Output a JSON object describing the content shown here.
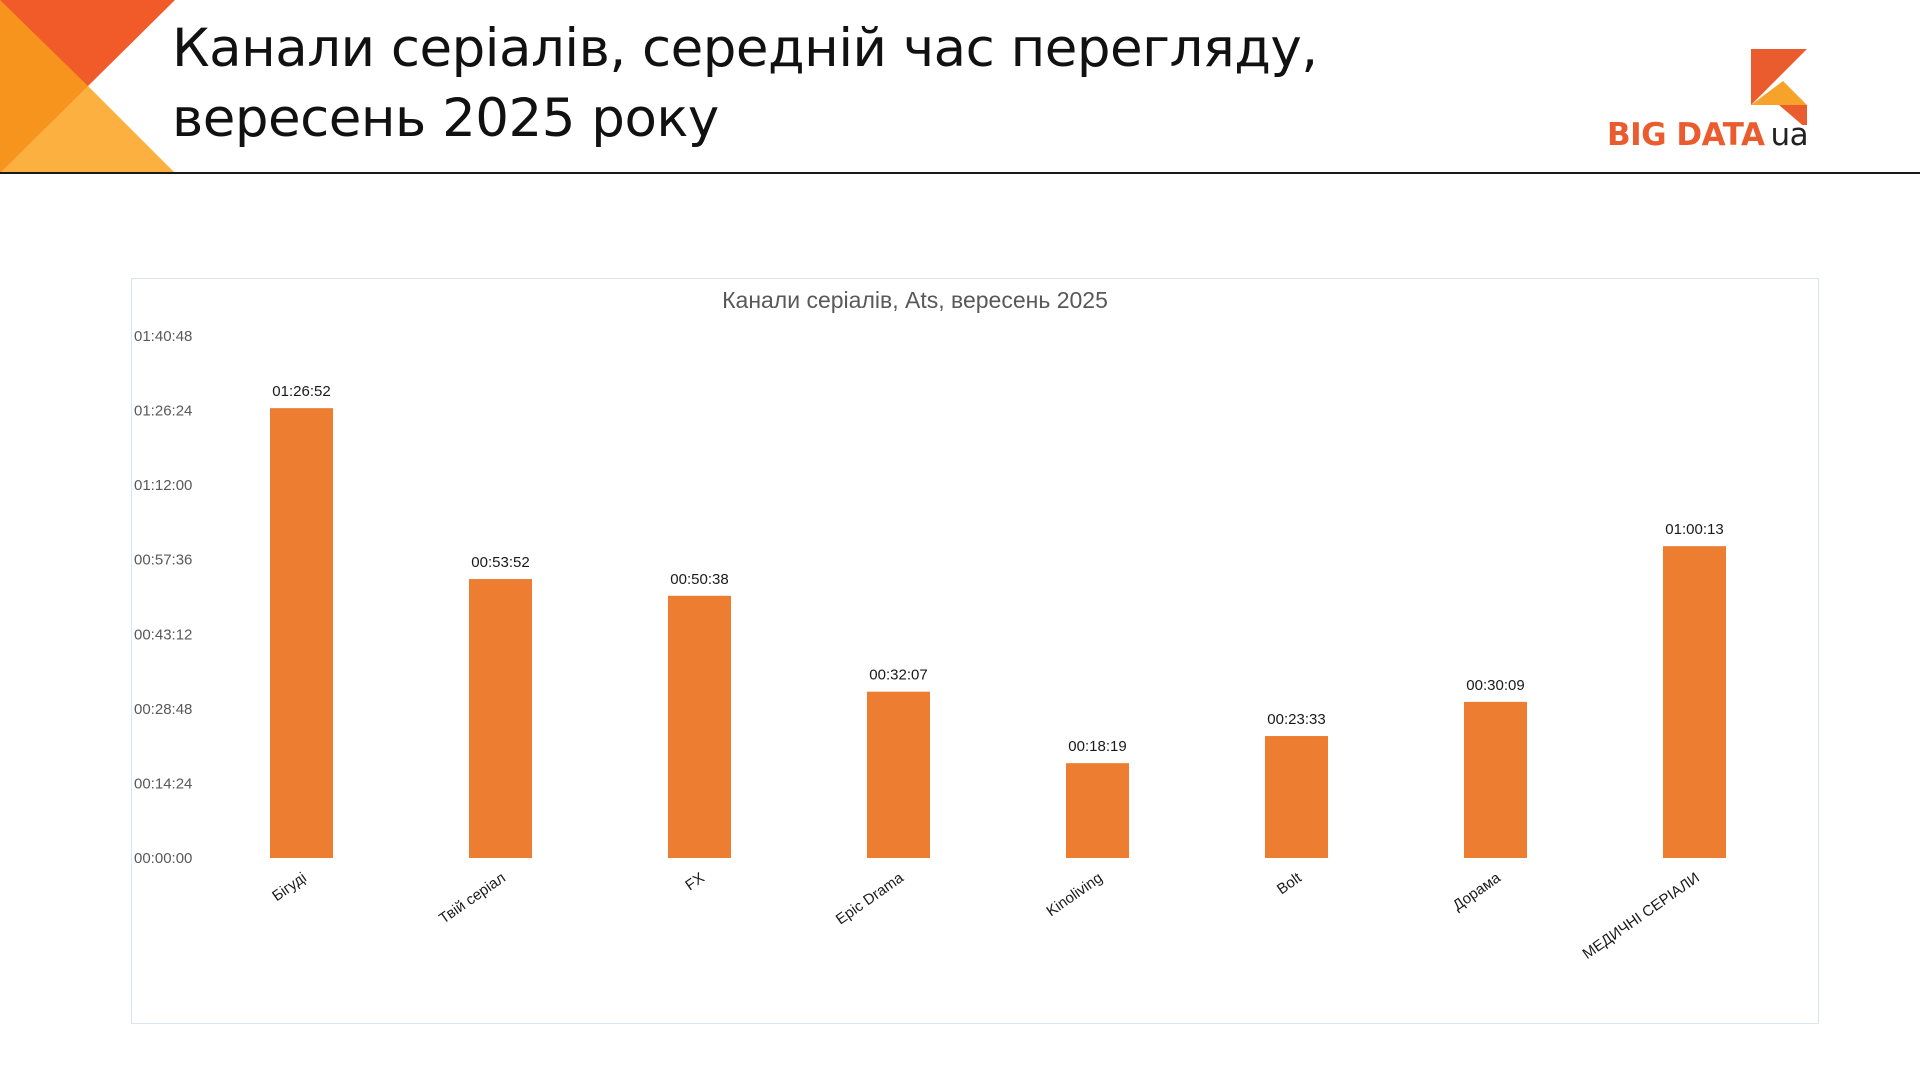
{
  "slide": {
    "title_line1": "Канали серіалів, середній час перегляду,",
    "title_line2": "вересень 2025 року"
  },
  "logo": {
    "name": "BIG DATA",
    "suffix": "ua",
    "colors": {
      "primary": "#ea5b2d",
      "secondary": "#f7a32b"
    }
  },
  "colors": {
    "bar": "#ed7d31",
    "corner_dark": "#f15a29",
    "corner_light": "#fbb040",
    "axis_text": "#595959",
    "title_text": "#595959"
  },
  "chart_data": {
    "type": "bar",
    "title": "Канали серіалів, Ats, вересень 2025",
    "xlabel": "",
    "ylabel": "",
    "categories": [
      "Бігуді",
      "Твій серіал",
      "FX",
      "Epic Drama",
      "Kinoliving",
      "Bolt",
      "Дорама",
      "МЕДИЧНІ СЕРІАЛИ"
    ],
    "values_seconds": [
      5212,
      3232,
      3038,
      1927,
      1099,
      1413,
      1809,
      3613
    ],
    "data_labels": [
      "01:26:52",
      "00:53:52",
      "00:50:38",
      "00:32:07",
      "00:18:19",
      "00:23:33",
      "00:30:09",
      "01:00:13"
    ],
    "y_ticks": [
      "00:00:00",
      "00:14:24",
      "00:28:48",
      "00:43:12",
      "00:57:36",
      "01:12:00",
      "01:26:24",
      "01:40:48"
    ],
    "ylim_seconds": [
      0,
      6048
    ],
    "grid": false,
    "legend": "none"
  }
}
